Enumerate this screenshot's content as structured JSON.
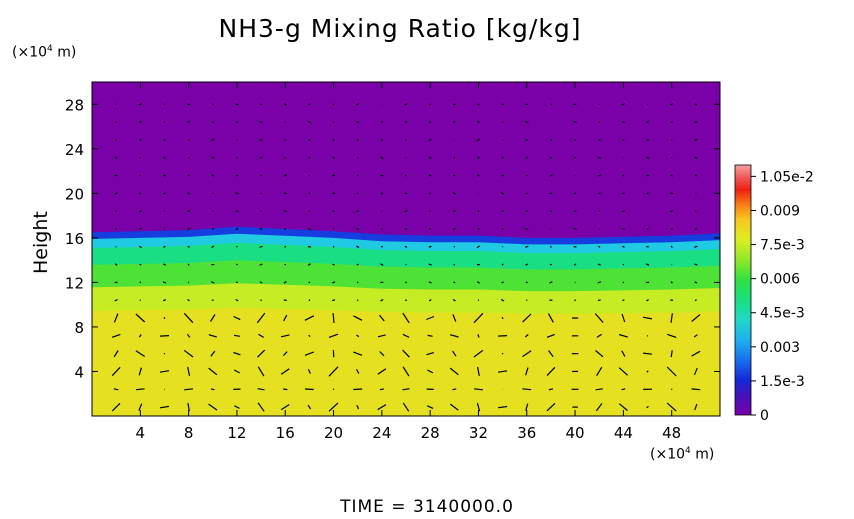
{
  "chart_data": {
    "type": "heatmap",
    "title": "NH3-g Mixing Ratio [kg/kg]",
    "ylabel": "Height",
    "y_unit": "(×10",
    "y_unit_exp": "4",
    "y_unit_tail": " m)",
    "x_unit": "(×10",
    "x_unit_exp": "4",
    "x_unit_tail": " m)",
    "xlim": [
      0,
      52
    ],
    "ylim": [
      0,
      30
    ],
    "x_ticks": [
      "4",
      "8",
      "12",
      "16",
      "20",
      "24",
      "28",
      "32",
      "36",
      "40",
      "44",
      "48"
    ],
    "x_tick_values": [
      4,
      8,
      12,
      16,
      20,
      24,
      28,
      32,
      36,
      40,
      44,
      48
    ],
    "y_ticks": [
      "4",
      "8",
      "12",
      "16",
      "20",
      "24",
      "28"
    ],
    "y_tick_values": [
      4,
      8,
      12,
      16,
      20,
      24,
      28
    ],
    "colorbar": {
      "range": [
        0,
        0.011
      ],
      "tick_labels": [
        "0",
        "1.5e-3",
        "0.003",
        "4.5e-3",
        "0.006",
        "7.5e-3",
        "0.009",
        "1.05e-2"
      ],
      "tick_values": [
        0,
        0.0015,
        0.003,
        0.0045,
        0.006,
        0.0075,
        0.009,
        0.0105
      ]
    },
    "field_layers": [
      {
        "from_height": 0,
        "to_height": 9.4,
        "value": 0.0082
      },
      {
        "from_height": 9.4,
        "to_height": 11.5,
        "value": 0.0077
      },
      {
        "from_height": 11.5,
        "to_height": 13.5,
        "value": 0.0066
      },
      {
        "from_height": 13.5,
        "to_height": 15.0,
        "value": 0.0052
      },
      {
        "from_height": 15.0,
        "to_height": 15.8,
        "value": 0.0036
      },
      {
        "from_height": 15.8,
        "to_height": 16.4,
        "value": 0.0012
      },
      {
        "from_height": 16.4,
        "to_height": 30,
        "value": 0.0
      }
    ],
    "boundary_height": [
      {
        "x": 0,
        "y": 16.5
      },
      {
        "x": 4,
        "y": 16.6
      },
      {
        "x": 8,
        "y": 16.7
      },
      {
        "x": 12,
        "y": 17.0
      },
      {
        "x": 16,
        "y": 16.8
      },
      {
        "x": 20,
        "y": 16.6
      },
      {
        "x": 24,
        "y": 16.3
      },
      {
        "x": 28,
        "y": 16.2
      },
      {
        "x": 32,
        "y": 16.2
      },
      {
        "x": 36,
        "y": 16.0
      },
      {
        "x": 40,
        "y": 16.0
      },
      {
        "x": 44,
        "y": 16.1
      },
      {
        "x": 48,
        "y": 16.2
      },
      {
        "x": 52,
        "y": 16.4
      }
    ],
    "vectors": "wind arrows overlay"
  },
  "time_label": "TIME = 3140000.0",
  "colors": {
    "purple": "#7a00a8",
    "yellow": "#dcee22",
    "axis": "#000000"
  }
}
